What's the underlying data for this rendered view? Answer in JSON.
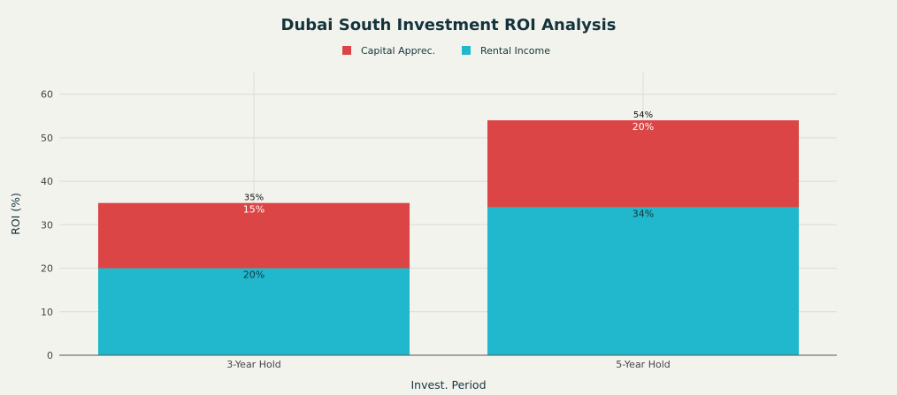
{
  "chart_data": {
    "type": "bar",
    "stacked": true,
    "title": "Dubai South Investment ROI Analysis",
    "xlabel": "Invest. Period",
    "ylabel": "ROI (%)",
    "ylim": [
      0,
      65
    ],
    "yticks": [
      0,
      10,
      20,
      30,
      40,
      50,
      60
    ],
    "categories": [
      "3-Year Hold",
      "5-Year Hold"
    ],
    "series": [
      {
        "name": "Rental Income",
        "color": "#21b8cd",
        "values": [
          20,
          34
        ],
        "labels": [
          "20%",
          "34%"
        ]
      },
      {
        "name": "Capital Apprec.",
        "color": "#db4545",
        "values": [
          15,
          20
        ],
        "labels": [
          "15%",
          "20%"
        ]
      }
    ],
    "totals": [
      35,
      54
    ],
    "total_labels": [
      "35%",
      "54%"
    ],
    "legend": [
      {
        "name": "Capital Apprec.",
        "color": "#db4545"
      },
      {
        "name": "Rental Income",
        "color": "#21b8cd"
      }
    ],
    "legend_position": "top-center",
    "grid": true
  }
}
